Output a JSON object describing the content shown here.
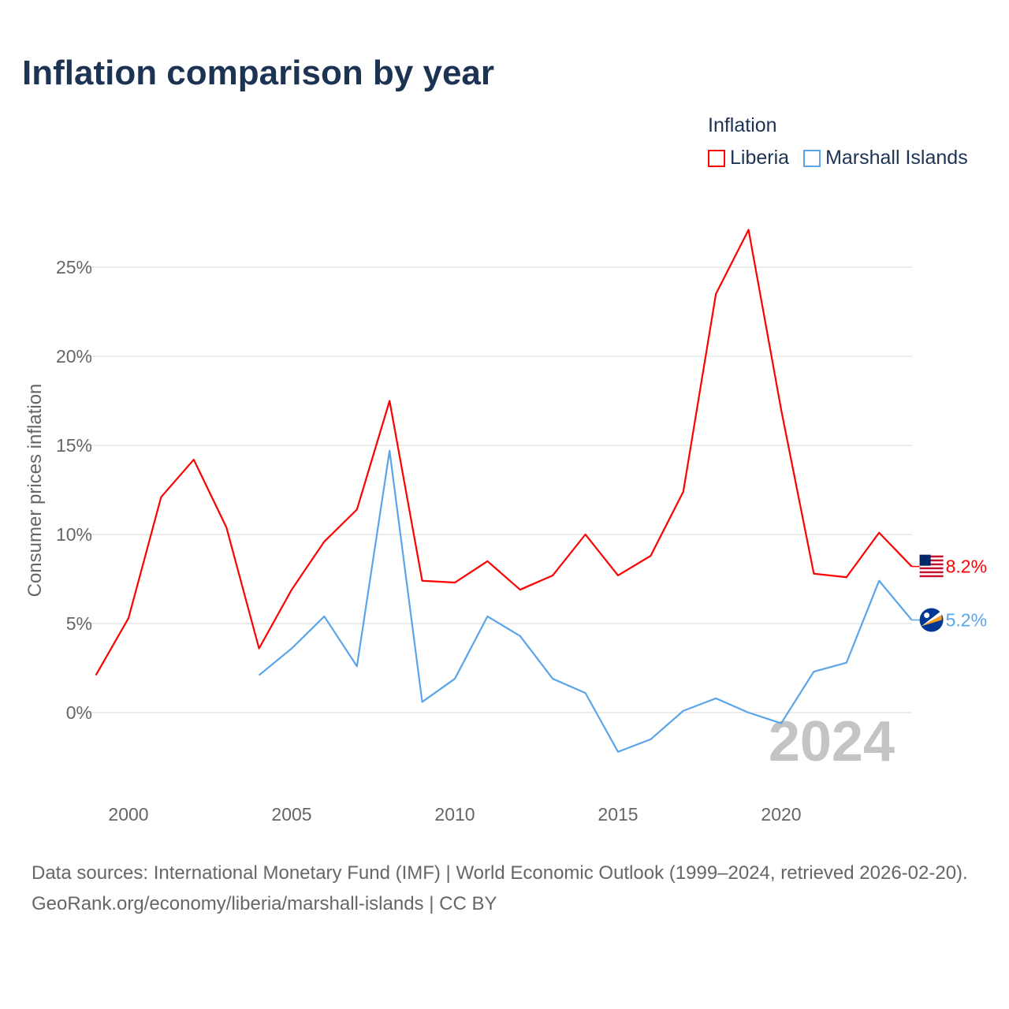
{
  "title": "Inflation comparison by year",
  "legend_title": "Inflation",
  "colors": {
    "liberia": "#ff0000",
    "marshall": "#5aa5ea",
    "grid": "#e6e6e6",
    "axis_text": "#666666",
    "year_watermark": "#c4c4c4"
  },
  "chart_data": {
    "type": "line",
    "title": "Inflation comparison by year",
    "xlabel": "",
    "ylabel": "Consumer prices inflation",
    "xlim": [
      1999,
      2024
    ],
    "ylim": [
      -4.5,
      28
    ],
    "grid": true,
    "legend_placement": "top-right",
    "x_ticks": [
      2000,
      2005,
      2010,
      2015,
      2020
    ],
    "y_ticks": [
      0,
      5,
      10,
      15,
      20,
      25
    ],
    "y_tick_labels": [
      "0%",
      "5%",
      "10%",
      "15%",
      "20%",
      "25%"
    ],
    "x": [
      1999,
      2000,
      2001,
      2002,
      2003,
      2004,
      2005,
      2006,
      2007,
      2008,
      2009,
      2010,
      2011,
      2012,
      2013,
      2014,
      2015,
      2016,
      2017,
      2018,
      2019,
      2020,
      2021,
      2022,
      2023,
      2024
    ],
    "series": [
      {
        "name": "Liberia",
        "end_label": "8.2%",
        "values": [
          2.1,
          5.3,
          12.1,
          14.2,
          10.4,
          3.6,
          6.9,
          9.6,
          11.4,
          17.5,
          7.4,
          7.3,
          8.5,
          6.9,
          7.7,
          10.0,
          7.7,
          8.8,
          12.4,
          23.5,
          27.1,
          17.0,
          7.8,
          7.6,
          10.1,
          8.2
        ]
      },
      {
        "name": "Marshall Islands",
        "end_label": "5.2%",
        "values": [
          null,
          null,
          null,
          null,
          null,
          2.1,
          3.6,
          5.4,
          2.6,
          14.7,
          0.6,
          1.9,
          5.4,
          4.3,
          1.9,
          1.1,
          -2.2,
          -1.5,
          0.1,
          0.8,
          -0.0,
          -0.6,
          2.3,
          2.8,
          7.4,
          5.2
        ]
      }
    ],
    "annotation": "2024"
  },
  "footer": {
    "sources": "Data sources: International Monetary Fund (IMF) | World Economic Outlook (1999–2024, retrieved 2026-02-20).",
    "credit": "GeoRank.org/economy/liberia/marshall-islands | CC BY"
  }
}
